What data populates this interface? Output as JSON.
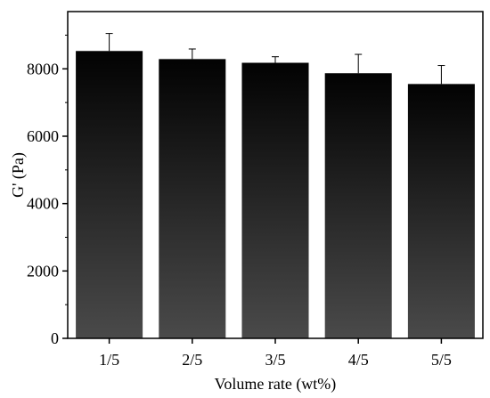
{
  "chart_data": {
    "type": "bar",
    "categories": [
      "1/5",
      "2/5",
      "3/5",
      "4/5",
      "5/5"
    ],
    "values": [
      8530,
      8290,
      8180,
      7870,
      7550
    ],
    "error_bars": [
      520,
      300,
      180,
      560,
      550
    ],
    "xlabel": "Volume rate (wt%)",
    "ylabel": "G' (Pa)",
    "ylim": [
      0,
      9700
    ],
    "yticks": [
      0,
      2000,
      4000,
      6000,
      8000
    ],
    "ytick_labels": [
      "0",
      "2000",
      "4000",
      "6000",
      "8000"
    ],
    "grid": false,
    "legend": "none",
    "colors": {
      "bar_top": "#020202",
      "bar_bottom": "#4a4a4a",
      "axis": "#000000"
    }
  }
}
